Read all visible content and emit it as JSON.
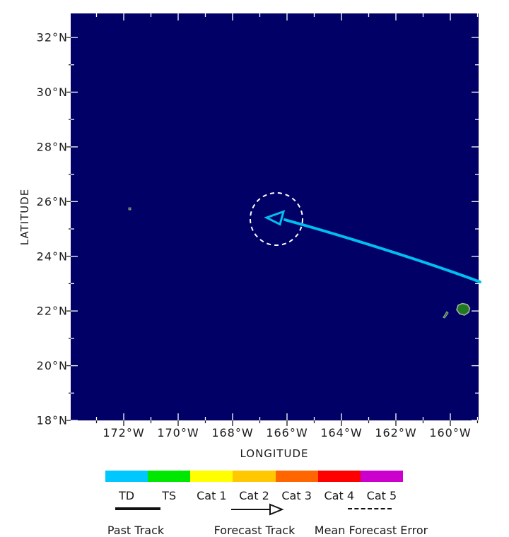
{
  "map": {
    "bg_color": "#000066",
    "x_axis": {
      "label": "LONGITUDE",
      "ticks": [
        "172°W",
        "170°W",
        "168°W",
        "166°W",
        "164°W",
        "162°W",
        "160°W"
      ]
    },
    "y_axis": {
      "label": "LATITUDE",
      "ticks": [
        "32°N",
        "30°N",
        "28°N",
        "26°N",
        "24°N",
        "22°N",
        "20°N",
        "18°N"
      ]
    },
    "island_fill": "#1F7A1F",
    "island_stroke": "#A9A9A9",
    "storm": {
      "track_color": "#00BFF0",
      "error_circle_color": "#FFFFFF"
    }
  },
  "chart_data": {
    "type": "line",
    "title": "",
    "xlabel": "LONGITUDE",
    "ylabel": "LATITUDE",
    "x_tick_labels": [
      "172°W",
      "170°W",
      "168°W",
      "166°W",
      "164°W",
      "162°W",
      "160°W"
    ],
    "y_tick_labels": [
      "32°N",
      "30°N",
      "28°N",
      "26°N",
      "24°N",
      "22°N",
      "20°N",
      "18°N"
    ],
    "xlim_deg_west": [
      174.0,
      159.0
    ],
    "ylim_deg_north": [
      18.0,
      32.9
    ],
    "grid": false,
    "series": [
      {
        "name": "storm-track",
        "points_lon_deg_w": [
          159.0,
          163.3,
          166.7
        ],
        "points_lat_deg_n": [
          23.1,
          24.5,
          25.4
        ]
      }
    ],
    "forecast_point": {
      "lon_deg_w": 166.7,
      "lat_deg_n": 25.4
    },
    "mean_forecast_error_radius_deg": 1.0,
    "islands": [
      {
        "name": "large-island",
        "lon_deg_w": 159.5,
        "lat_deg_n": 22.0
      },
      {
        "name": "small-island",
        "lon_deg_w": 160.2,
        "lat_deg_n": 21.9
      },
      {
        "name": "tiny-atoll",
        "lon_deg_w": 171.8,
        "lat_deg_n": 25.75
      }
    ]
  },
  "legend": {
    "categories": [
      {
        "label": "TD",
        "color": "#00C8FF"
      },
      {
        "label": "TS",
        "color": "#00E800"
      },
      {
        "label": "Cat 1",
        "color": "#FFFF00"
      },
      {
        "label": "Cat 2",
        "color": "#FFC800"
      },
      {
        "label": "Cat 3",
        "color": "#FF6600"
      },
      {
        "label": "Cat 4",
        "color": "#FF0000"
      },
      {
        "label": "Cat 5",
        "color": "#CC00CC"
      }
    ],
    "items": [
      {
        "label": "Past Track"
      },
      {
        "label": "Forecast Track"
      },
      {
        "label": "Mean Forecast Error"
      }
    ]
  }
}
